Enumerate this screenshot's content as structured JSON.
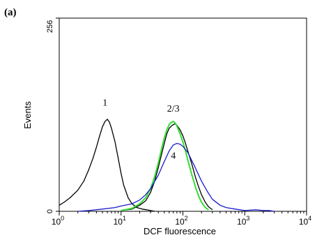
{
  "chart_data": {
    "type": "line",
    "panel_label": "(a)",
    "xlabel": "DCF fluorescence",
    "ylabel": "Events",
    "x_scale": "log",
    "xlim": [
      1,
      10000
    ],
    "ylim": [
      0,
      256
    ],
    "x_ticks": [
      {
        "value": 1,
        "base": "10",
        "exp": "0"
      },
      {
        "value": 10,
        "base": "10",
        "exp": "1"
      },
      {
        "value": 100,
        "base": "10",
        "exp": "2"
      },
      {
        "value": 1000,
        "base": "10",
        "exp": "3"
      },
      {
        "value": 10000,
        "base": "10",
        "exp": "4"
      }
    ],
    "y_ticks": [
      {
        "value": 0,
        "label": "0"
      },
      {
        "value": 256,
        "label": "256"
      }
    ],
    "grid": false,
    "annotations": [
      {
        "text": "1",
        "x": 5.5,
        "y": 140
      },
      {
        "text": "2/3",
        "x": 70,
        "y": 132
      },
      {
        "text": "4",
        "x": 70,
        "y": 70
      }
    ],
    "series": [
      {
        "label": "1",
        "color": "#000000",
        "x": [
          1,
          1.2,
          1.5,
          2,
          2.5,
          3,
          3.5,
          4,
          4.5,
          5,
          5.5,
          6,
          6.5,
          7,
          8,
          9,
          10,
          11,
          13,
          15,
          18,
          22,
          26,
          30,
          35
        ],
        "y": [
          8,
          12,
          18,
          28,
          40,
          55,
          70,
          85,
          100,
          112,
          119,
          122,
          118,
          110,
          92,
          70,
          50,
          35,
          18,
          10,
          5,
          3,
          2,
          1,
          0
        ]
      },
      {
        "label": "2",
        "color": "#000000",
        "x": [
          10,
          15,
          20,
          25,
          30,
          35,
          40,
          45,
          50,
          55,
          60,
          65,
          70,
          75,
          80,
          90,
          100,
          110,
          120,
          140,
          160,
          180,
          200,
          230,
          260,
          300
        ],
        "y": [
          1,
          3,
          8,
          14,
          25,
          40,
          58,
          75,
          90,
          103,
          110,
          113,
          115,
          116,
          114,
          108,
          100,
          90,
          80,
          62,
          45,
          32,
          22,
          12,
          6,
          2
        ]
      },
      {
        "label": "3",
        "color": "#33dd33",
        "x": [
          10,
          15,
          20,
          25,
          30,
          35,
          40,
          45,
          50,
          55,
          60,
          65,
          70,
          75,
          80,
          90,
          100,
          110,
          120,
          140,
          160,
          180,
          200,
          230,
          260
        ],
        "y": [
          1,
          4,
          10,
          18,
          30,
          46,
          64,
          82,
          97,
          108,
          115,
          118,
          119,
          117,
          113,
          103,
          92,
          80,
          68,
          48,
          32,
          20,
          12,
          5,
          2
        ]
      },
      {
        "label": "4",
        "color": "#1a1acc",
        "x": [
          2,
          3,
          5,
          8,
          10,
          15,
          20,
          25,
          30,
          40,
          50,
          60,
          70,
          80,
          90,
          100,
          120,
          150,
          200,
          250,
          300,
          400,
          500,
          700,
          1000,
          1500,
          2000,
          2500,
          3000
        ],
        "y": [
          0,
          1,
          3,
          5,
          7,
          10,
          15,
          22,
          30,
          48,
          66,
          80,
          88,
          90,
          89,
          86,
          78,
          62,
          40,
          26,
          16,
          8,
          5,
          3,
          1,
          2,
          1,
          1,
          0
        ]
      }
    ]
  }
}
